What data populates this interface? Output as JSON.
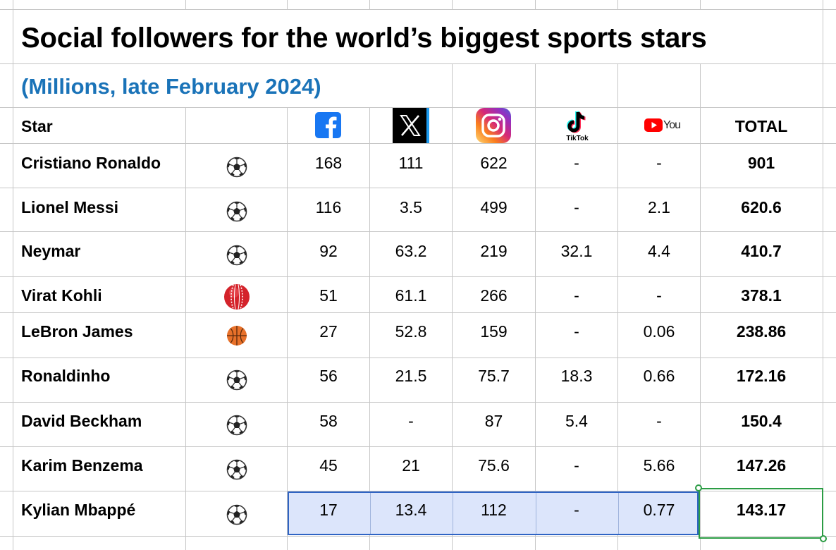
{
  "title": "Social followers for the world’s biggest sports stars",
  "subtitle": "(Millions, late February 2024)",
  "header": {
    "star": "Star",
    "tiktok_caption": "TikTok",
    "youtube_caption": "You",
    "total": "TOTAL",
    "platform_icons": [
      "facebook-icon",
      "x-icon",
      "instagram-icon",
      "tiktok-icon",
      "youtube-icon"
    ]
  },
  "rows": [
    {
      "name": "Cristiano Ronaldo",
      "sport": "soccer",
      "facebook": "168",
      "x": "111",
      "instagram": "622",
      "tiktok": "-",
      "youtube": "-",
      "total": "901"
    },
    {
      "name": "Lionel Messi",
      "sport": "soccer",
      "facebook": "116",
      "x": "3.5",
      "instagram": "499",
      "tiktok": "-",
      "youtube": "2.1",
      "total": "620.6"
    },
    {
      "name": "Neymar",
      "sport": "soccer",
      "facebook": "92",
      "x": "63.2",
      "instagram": "219",
      "tiktok": "32.1",
      "youtube": "4.4",
      "total": "410.7"
    },
    {
      "name": "Virat Kohli",
      "sport": "cricket",
      "facebook": "51",
      "x": "61.1",
      "instagram": "266",
      "tiktok": "-",
      "youtube": "-",
      "total": "378.1"
    },
    {
      "name": "LeBron James",
      "sport": "basketball",
      "facebook": "27",
      "x": "52.8",
      "instagram": "159",
      "tiktok": "-",
      "youtube": "0.06",
      "total": "238.86"
    },
    {
      "name": "Ronaldinho",
      "sport": "soccer",
      "facebook": "56",
      "x": "21.5",
      "instagram": "75.7",
      "tiktok": "18.3",
      "youtube": "0.66",
      "total": "172.16"
    },
    {
      "name": "David Beckham",
      "sport": "soccer",
      "facebook": "58",
      "x": "-",
      "instagram": "87",
      "tiktok": "5.4",
      "youtube": "-",
      "total": "150.4"
    },
    {
      "name": "Karim Benzema",
      "sport": "soccer",
      "facebook": "45",
      "x": "21",
      "instagram": "75.6",
      "tiktok": "-",
      "youtube": "5.66",
      "total": "147.26"
    },
    {
      "name": "Kylian Mbappé",
      "sport": "soccer",
      "facebook": "17",
      "x": "13.4",
      "instagram": "112",
      "tiktok": "-",
      "youtube": "0.77",
      "total": "143.17"
    }
  ],
  "colors": {
    "subtitle": "#1a73b8",
    "facebook": "#1877f2",
    "selection_fill": "#dce5fb",
    "selection_border": "#2f64c4",
    "active_cell_border": "#2b9c44"
  }
}
